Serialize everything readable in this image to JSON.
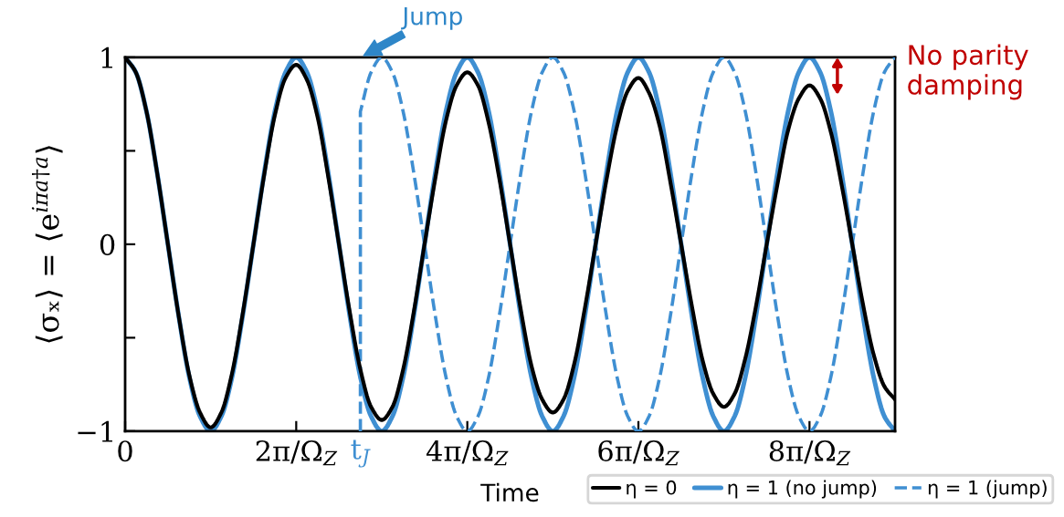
{
  "chart_data": {
    "type": "line",
    "xlabel": "Time",
    "ylabel": "⟨σₓ⟩ = ⟨e$^{iπa†a}$⟩",
    "x": [
      0,
      0.125,
      0.25,
      0.375,
      0.5,
      0.625,
      0.75,
      0.875,
      1,
      1.125,
      1.25,
      1.375,
      1.5,
      1.625,
      1.75,
      1.875,
      2,
      2.125,
      2.25,
      2.375,
      2.5,
      2.625,
      2.75,
      2.875,
      3,
      3.125,
      3.25,
      3.375,
      3.5,
      3.625,
      3.75,
      3.875,
      4,
      4.125,
      4.25,
      4.375,
      4.5,
      4.625,
      4.75,
      4.875,
      5,
      5.125,
      5.25,
      5.375,
      5.5,
      5.625,
      5.75,
      5.875,
      6,
      6.125,
      6.25,
      6.375,
      6.5,
      6.625,
      6.75,
      6.875,
      7,
      7.125,
      7.25,
      7.375,
      7.5,
      7.625,
      7.75,
      7.875,
      8,
      8.125,
      8.25,
      8.375,
      8.5,
      8.625,
      8.75,
      8.875,
      9
    ],
    "series": [
      {
        "name": "η = 0",
        "color": "#000000",
        "values": [
          1,
          0.92,
          0.71,
          0.38,
          0,
          -0.38,
          -0.7,
          -0.9,
          -0.98,
          -0.9,
          -0.69,
          -0.37,
          0,
          0.37,
          0.69,
          0.89,
          0.96,
          0.88,
          0.68,
          0.36,
          0,
          -0.36,
          -0.67,
          -0.87,
          -0.94,
          -0.87,
          -0.67,
          -0.36,
          0,
          0.35,
          0.66,
          0.85,
          0.92,
          0.85,
          0.65,
          0.35,
          0,
          -0.35,
          -0.65,
          -0.83,
          -0.9,
          -0.83,
          -0.64,
          -0.34,
          0,
          0.34,
          0.63,
          0.82,
          0.89,
          0.81,
          0.63,
          0.33,
          0,
          -0.33,
          -0.62,
          -0.8,
          -0.87,
          -0.8,
          -0.61,
          -0.33,
          0,
          0.32,
          0.61,
          0.78,
          0.85,
          0.78,
          0.6,
          0.32,
          0,
          -0.32,
          -0.59,
          -0.76,
          -0.83
        ]
      },
      {
        "name": "η = 1 (no jump)",
        "color": "#3f8fd2",
        "values": [
          1,
          0.92,
          0.71,
          0.38,
          0,
          -0.38,
          -0.71,
          -0.92,
          -1,
          -0.92,
          -0.71,
          -0.38,
          0,
          0.38,
          0.71,
          0.92,
          1,
          0.92,
          0.71,
          0.38,
          0,
          -0.38,
          -0.71,
          -0.92,
          -1,
          -0.92,
          -0.71,
          -0.38,
          0,
          0.38,
          0.71,
          0.92,
          1,
          0.92,
          0.71,
          0.38,
          0,
          -0.38,
          -0.71,
          -0.92,
          -1,
          -0.92,
          -0.71,
          -0.38,
          0,
          0.38,
          0.71,
          0.92,
          1,
          0.92,
          0.71,
          0.38,
          0,
          -0.38,
          -0.71,
          -0.92,
          -1,
          -0.92,
          -0.71,
          -0.38,
          0,
          0.38,
          0.71,
          0.92,
          1,
          0.92,
          0.71,
          0.38,
          0,
          -0.38,
          -0.71,
          -0.92,
          -1
        ]
      },
      {
        "name": "η = 1 (jump)",
        "color": "#3f8fd2",
        "line_style": "dashed",
        "x": [
          2.75,
          2.75,
          2.875,
          3,
          3.125,
          3.25,
          3.375,
          3.5,
          3.625,
          3.75,
          3.875,
          4,
          4.125,
          4.25,
          4.375,
          4.5,
          4.625,
          4.75,
          4.875,
          5,
          5.125,
          5.25,
          5.375,
          5.5,
          5.625,
          5.75,
          5.875,
          6,
          6.125,
          6.25,
          6.375,
          6.5,
          6.625,
          6.75,
          6.875,
          7,
          7.125,
          7.25,
          7.375,
          7.5,
          7.625,
          7.75,
          7.875,
          8,
          8.125,
          8.25,
          8.375,
          8.5,
          8.625,
          8.75,
          8.875,
          9
        ],
        "values": [
          -1,
          0.71,
          0.92,
          1,
          0.92,
          0.71,
          0.38,
          0,
          -0.38,
          -0.71,
          -0.92,
          -1,
          -0.92,
          -0.71,
          -0.38,
          0,
          0.38,
          0.71,
          0.92,
          1,
          0.92,
          0.71,
          0.38,
          0,
          -0.38,
          -0.71,
          -0.92,
          -1,
          -0.92,
          -0.71,
          -0.38,
          0,
          0.38,
          0.71,
          0.92,
          1,
          0.92,
          0.71,
          0.38,
          0,
          -0.38,
          -0.71,
          -0.92,
          -1,
          -0.92,
          -0.71,
          -0.38,
          0,
          0.38,
          0.71,
          0.92,
          1
        ]
      }
    ],
    "xlim": [
      0,
      9
    ],
    "ylim": [
      -1,
      1
    ],
    "xticks": [
      0,
      {
        "value": 2,
        "label": "2π/Ω$_{Z}$"
      },
      {
        "value": 2.75,
        "label": "t$_{J}$"
      },
      {
        "value": 4,
        "label": "4π/Ω$_{Z}$"
      },
      {
        "value": 6,
        "label": "6π/Ω$_{Z}$"
      },
      {
        "value": 8,
        "label": "8π/Ω$_{Z}$"
      }
    ],
    "yticks": [
      {
        "value": -1,
        "label": "−1"
      },
      {
        "value": -0.5,
        "label": null
      },
      0,
      {
        "value": 0.5,
        "label": null
      },
      1
    ],
    "legend": "bottom right",
    "annotations": [
      "Jump",
      "No parity damping"
    ]
  }
}
